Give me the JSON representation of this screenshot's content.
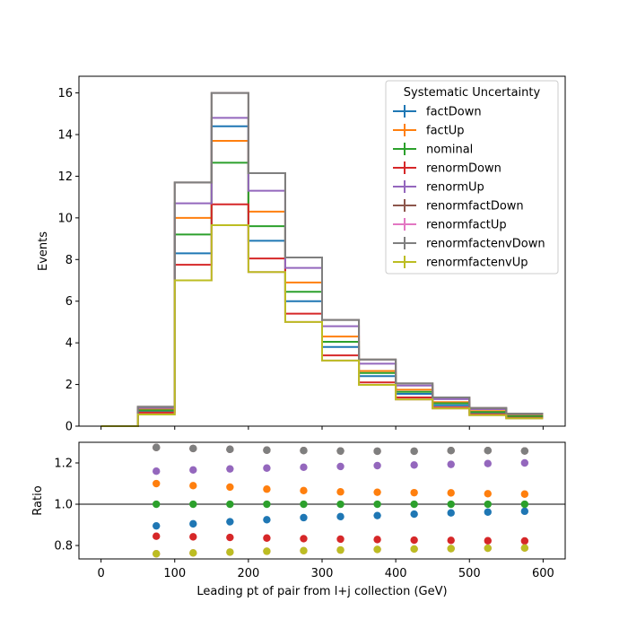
{
  "chart_data": [
    {
      "type": "step-histogram",
      "panel": "top",
      "xlabel": "",
      "ylabel": "Events",
      "xlim": [
        -30,
        630
      ],
      "ylim": [
        0,
        16.8
      ],
      "xticks": [
        0,
        100,
        200,
        300,
        400,
        500,
        600
      ],
      "yticks": [
        0,
        2,
        4,
        6,
        8,
        10,
        12,
        14,
        16
      ],
      "grid": false,
      "legend": {
        "title": "Systematic Uncertainty",
        "placement": "upper right"
      },
      "bin_edges": [
        0,
        50,
        100,
        150,
        200,
        250,
        300,
        350,
        400,
        450,
        500,
        550,
        600
      ],
      "series": [
        {
          "name": "factDown",
          "color": "#1f77b4",
          "values": [
            0,
            0.68,
            8.3,
            14.4,
            8.9,
            6.0,
            3.8,
            2.4,
            1.55,
            1.0,
            0.65,
            0.45
          ]
        },
        {
          "name": "factUp",
          "color": "#ff7f0e",
          "values": [
            0,
            0.8,
            10.0,
            13.7,
            10.3,
            6.9,
            4.3,
            2.65,
            1.75,
            1.15,
            0.72,
            0.5
          ]
        },
        {
          "name": "nominal",
          "color": "#2ca02c",
          "values": [
            0,
            0.76,
            9.2,
            12.65,
            9.6,
            6.45,
            4.05,
            2.55,
            1.65,
            1.1,
            0.68,
            0.48
          ]
        },
        {
          "name": "renormDown",
          "color": "#d62728",
          "values": [
            0,
            0.65,
            7.75,
            10.65,
            8.05,
            5.4,
            3.4,
            2.1,
            1.38,
            0.9,
            0.57,
            0.4
          ]
        },
        {
          "name": "renormUp",
          "color": "#9467bd",
          "values": [
            0,
            0.88,
            10.7,
            14.8,
            11.3,
            7.6,
            4.8,
            3.0,
            1.95,
            1.3,
            0.82,
            0.58
          ]
        },
        {
          "name": "renormfactDown",
          "color": "#8c564b",
          "values": [
            0,
            0.93,
            11.7,
            16.0,
            12.15,
            8.1,
            5.1,
            3.2,
            2.05,
            1.38,
            0.87,
            0.6
          ]
        },
        {
          "name": "renormfactUp",
          "color": "#e377c2",
          "values": [
            0,
            0.56,
            7.0,
            9.65,
            7.4,
            5.0,
            3.15,
            1.98,
            1.28,
            0.85,
            0.53,
            0.37
          ]
        },
        {
          "name": "renormfactenvDown",
          "color": "#7f7f7f",
          "values": [
            0,
            0.93,
            11.7,
            16.0,
            12.15,
            8.1,
            5.1,
            3.2,
            2.05,
            1.38,
            0.87,
            0.6
          ]
        },
        {
          "name": "renormfactenvUp",
          "color": "#bcbd22",
          "values": [
            0,
            0.56,
            7.0,
            9.65,
            7.4,
            5.0,
            3.15,
            1.98,
            1.28,
            0.85,
            0.53,
            0.37
          ]
        }
      ]
    },
    {
      "type": "scatter",
      "panel": "bottom",
      "xlabel": "Leading pt of pair from l+j collection (GeV)",
      "ylabel": "Ratio",
      "xlim": [
        -30,
        630
      ],
      "ylim": [
        0.735,
        1.3
      ],
      "xticks": [
        0,
        100,
        200,
        300,
        400,
        500,
        600
      ],
      "yticks": [
        0.8,
        1.0,
        1.2
      ],
      "reference_line": 1.0,
      "grid": false,
      "x": [
        75,
        125,
        175,
        225,
        275,
        325,
        375,
        425,
        475,
        525,
        575
      ],
      "series": [
        {
          "name": "factDown",
          "color": "#1f77b4",
          "values": [
            0.895,
            0.905,
            0.915,
            0.925,
            0.935,
            0.94,
            0.945,
            0.952,
            0.958,
            0.962,
            0.966
          ]
        },
        {
          "name": "factUp",
          "color": "#ff7f0e",
          "values": [
            1.1,
            1.09,
            1.083,
            1.073,
            1.066,
            1.06,
            1.058,
            1.056,
            1.055,
            1.051,
            1.049
          ]
        },
        {
          "name": "nominal",
          "color": "#2ca02c",
          "values": [
            1.0,
            1.0,
            1.0,
            1.0,
            1.0,
            1.0,
            1.0,
            1.0,
            1.0,
            1.0,
            1.0
          ]
        },
        {
          "name": "renormDown",
          "color": "#d62728",
          "values": [
            0.845,
            0.842,
            0.839,
            0.836,
            0.833,
            0.831,
            0.829,
            0.826,
            0.825,
            0.823,
            0.822
          ]
        },
        {
          "name": "renormUp",
          "color": "#9467bd",
          "values": [
            1.16,
            1.166,
            1.171,
            1.175,
            1.179,
            1.183,
            1.187,
            1.19,
            1.193,
            1.197,
            1.2
          ]
        },
        {
          "name": "renormfactDown",
          "color": "#8c564b",
          "values": [
            1.275,
            1.27,
            1.266,
            1.262,
            1.26,
            1.258,
            1.257,
            1.257,
            1.26,
            1.26,
            1.258
          ]
        },
        {
          "name": "renormfactUp",
          "color": "#e377c2",
          "values": [
            0.76,
            0.764,
            0.768,
            0.772,
            0.775,
            0.778,
            0.781,
            0.783,
            0.785,
            0.787,
            0.788
          ]
        },
        {
          "name": "renormfactenvDown",
          "color": "#7f7f7f",
          "values": [
            1.275,
            1.27,
            1.266,
            1.262,
            1.26,
            1.258,
            1.257,
            1.257,
            1.26,
            1.26,
            1.258
          ]
        },
        {
          "name": "renormfactenvUp",
          "color": "#bcbd22",
          "values": [
            0.76,
            0.764,
            0.768,
            0.772,
            0.775,
            0.778,
            0.781,
            0.783,
            0.785,
            0.787,
            0.788
          ]
        }
      ]
    }
  ]
}
